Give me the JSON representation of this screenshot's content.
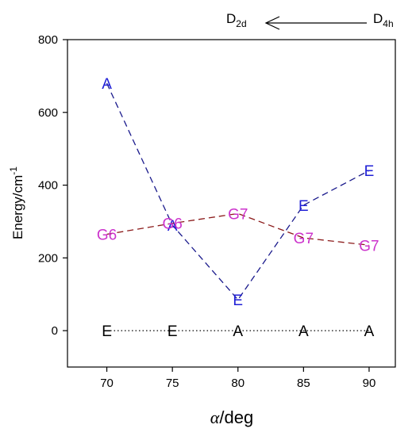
{
  "chart_data": {
    "type": "line",
    "title": "",
    "xlabel": "α/deg",
    "xlabel_parts": {
      "symbol": "α",
      "rest": "/deg"
    },
    "ylabel": "Energy/cm-1",
    "ylabel_parts": {
      "base": "Energy/cm",
      "sup": "-1"
    },
    "x": [
      70,
      75,
      80,
      85,
      90
    ],
    "xlim": [
      67,
      92
    ],
    "ylim": [
      -100,
      800
    ],
    "xticks": [
      70,
      75,
      80,
      85,
      90
    ],
    "yticks": [
      0,
      200,
      400,
      600,
      800
    ],
    "grid": false,
    "legend": "none",
    "series": [
      {
        "values": [
          0,
          0,
          0,
          0,
          0
        ],
        "labels": [
          "E",
          "E",
          "A",
          "A",
          "A"
        ],
        "line_style": "dotted",
        "line_color": "#000000",
        "label_color": "#000000"
      },
      {
        "values": [
          680,
          290,
          85,
          345,
          440
        ],
        "labels": [
          "A",
          "A",
          "E",
          "E",
          "E"
        ],
        "line_style": "dashed",
        "line_color": "#1a1a8c",
        "label_color": "#1f1fd6"
      },
      {
        "values": [
          265,
          295,
          322,
          255,
          235
        ],
        "labels": [
          "G6",
          "G6",
          "G7",
          "G7",
          "G7"
        ],
        "line_style": "dashed",
        "line_color": "#8b1a1a",
        "label_color": "#cc33cc"
      }
    ],
    "annotation": {
      "left": {
        "base": "D",
        "sub": "2d"
      },
      "right": {
        "base": "D",
        "sub": "4h"
      },
      "arrow": "right-to-left"
    }
  }
}
